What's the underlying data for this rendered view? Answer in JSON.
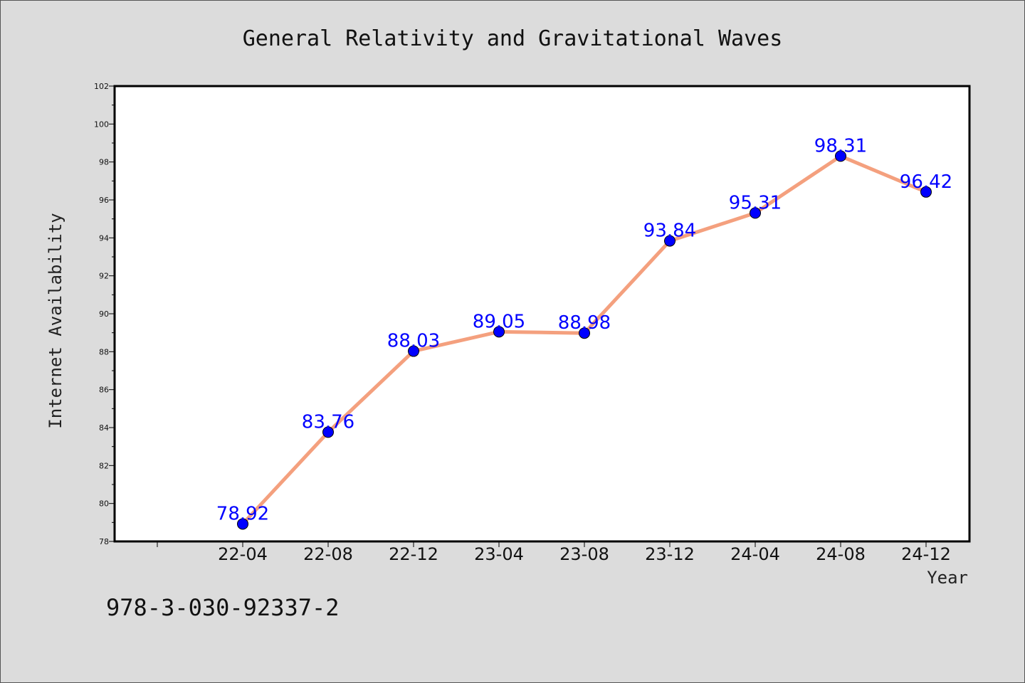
{
  "chart_data": {
    "type": "line",
    "title": "General Relativity and Gravitational Waves",
    "xlabel": "Year",
    "ylabel": "Internet Availability",
    "categories": [
      "22-04",
      "22-08",
      "22-12",
      "23-04",
      "23-08",
      "23-12",
      "24-04",
      "24-08",
      "24-12"
    ],
    "series": [
      {
        "values": [
          78.92,
          83.76,
          88.03,
          89.05,
          88.98,
          93.84,
          95.31,
          98.31,
          96.42
        ],
        "line_color": "#f4a07e",
        "marker_color": "#0000ff"
      }
    ],
    "ylim": [
      78,
      102
    ],
    "yticks": [
      "78",
      "80",
      "82",
      "84",
      "86",
      "88",
      "90",
      "92",
      "94",
      "96",
      "98",
      "100",
      "102"
    ],
    "data_labels": [
      "78.92",
      "83.76",
      "88.03",
      "89.05",
      "88.98",
      "93.84",
      "95.31",
      "98.31",
      "96.42"
    ],
    "grid": false,
    "legend": "none"
  },
  "footer": {
    "isbn": "978-3-030-92337-2"
  },
  "colors": {
    "background": "#dcdcdc",
    "plot_background": "#ffffff",
    "line": "#f4a07e",
    "marker": "#0000ff",
    "data_label": "#0000ff"
  }
}
